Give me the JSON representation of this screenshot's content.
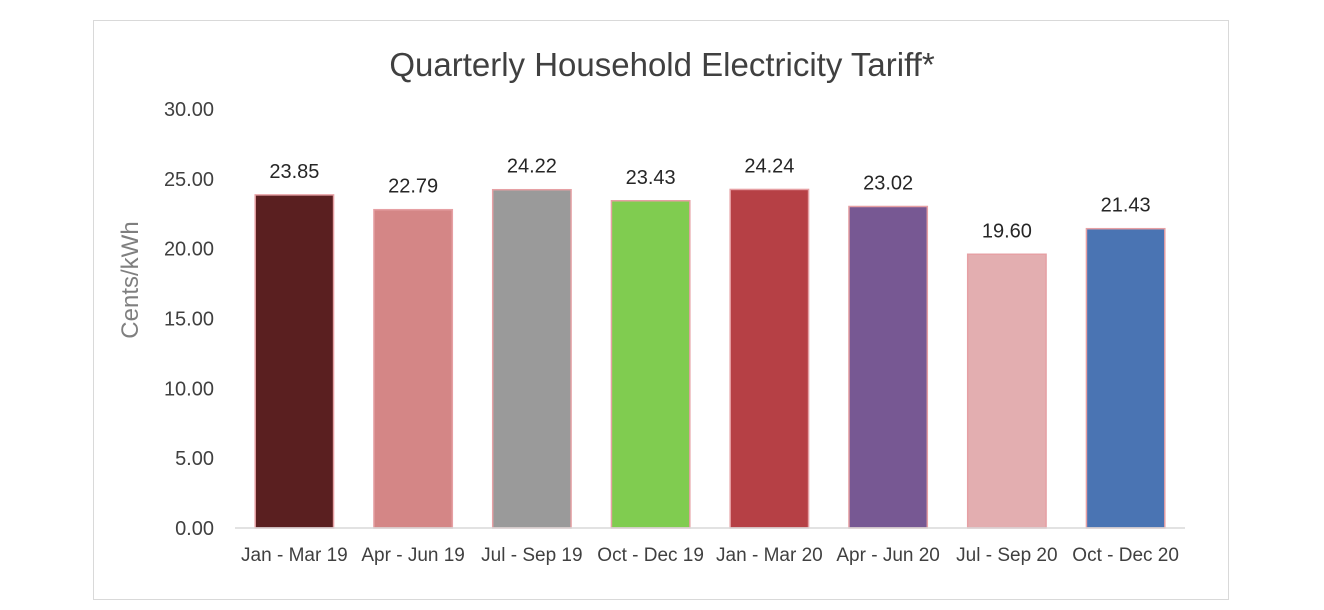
{
  "chart_data": {
    "type": "bar",
    "title": "Quarterly Household Electricity Tariff*",
    "xlabel": "",
    "ylabel": "Cents/kWh",
    "ylim": [
      0,
      30
    ],
    "yticks": [
      0,
      5,
      10,
      15,
      20,
      25,
      30
    ],
    "ytick_labels": [
      "0.00",
      "5.00",
      "10.00",
      "15.00",
      "20.00",
      "25.00",
      "30.00"
    ],
    "grid": false,
    "categories": [
      "Jan - Mar 19",
      "Apr - Jun 19",
      "Jul - Sep 19",
      "Oct - Dec 19",
      "Jan - Mar 20",
      "Apr - Jun 20",
      "Jul - Sep 20",
      "Oct - Dec 20"
    ],
    "values": [
      23.85,
      22.79,
      24.22,
      23.43,
      24.24,
      23.02,
      19.6,
      21.43
    ],
    "value_labels": [
      "23.85",
      "22.79",
      "24.22",
      "23.43",
      "24.24",
      "23.02",
      "19.60",
      "21.43"
    ],
    "colors": [
      "#5a1f20",
      "#d48686",
      "#9a9a9a",
      "#80cc50",
      "#b64045",
      "#775893",
      "#e3aeb0",
      "#4a74b3"
    ],
    "bar_border_color": "#e6a0a4"
  }
}
